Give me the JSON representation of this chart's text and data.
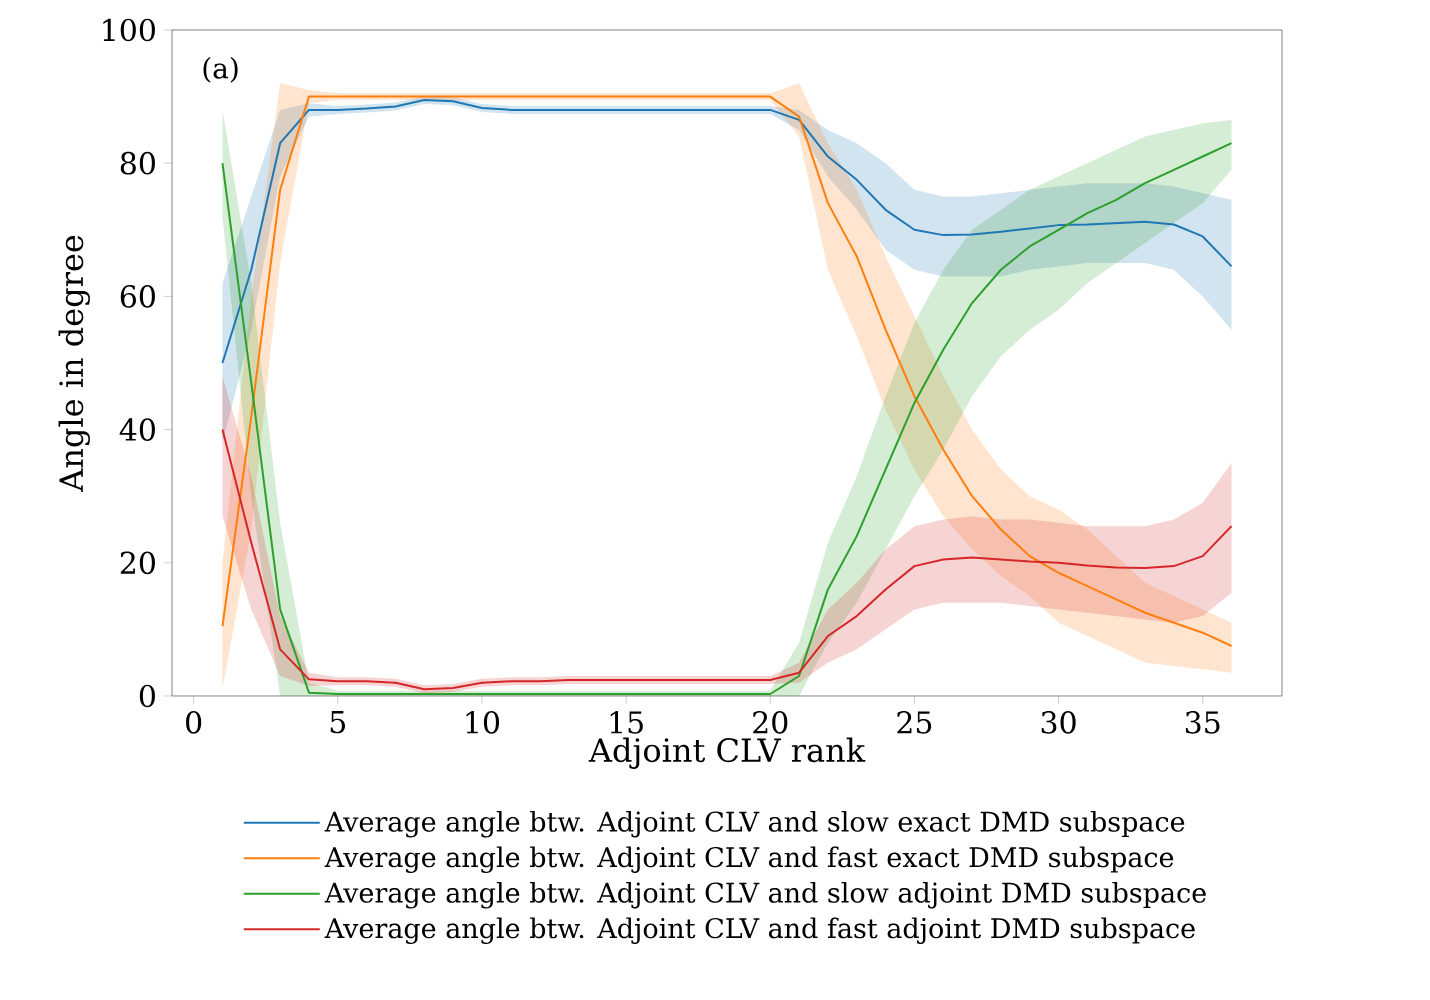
{
  "chart_data": {
    "type": "line",
    "xlabel": "Adjoint CLV rank",
    "ylabel": "Angle in degree",
    "annotations": [
      "(a)"
    ],
    "x": [
      1,
      2,
      3,
      4,
      5,
      6,
      7,
      8,
      9,
      10,
      11,
      12,
      13,
      14,
      15,
      16,
      17,
      18,
      19,
      20,
      21,
      22,
      23,
      24,
      25,
      26,
      27,
      28,
      29,
      30,
      31,
      32,
      33,
      34,
      35,
      36
    ],
    "series": [
      {
        "name": "Average angle btw. Adjoint CLV and slow exact DMD subspace",
        "color": "#1f77b4",
        "values": [
          50,
          64,
          83,
          88,
          88,
          88.2,
          88.5,
          89.5,
          89.3,
          88.3,
          88,
          88,
          88,
          88,
          88,
          88,
          88,
          88,
          88,
          88,
          86.5,
          81,
          77.5,
          73,
          70,
          69.2,
          69.3,
          69.7,
          70.2,
          70.7,
          70.8,
          71,
          71.2,
          70.8,
          69,
          64.5
        ],
        "lower": [
          38,
          55,
          78,
          87,
          87.4,
          87.6,
          87.9,
          88.9,
          88.7,
          87.7,
          87.4,
          87.4,
          87.4,
          87.4,
          87.4,
          87.4,
          87.4,
          87.4,
          87.4,
          87.4,
          85,
          78,
          73,
          67,
          64,
          63,
          63,
          63,
          64,
          64.5,
          65,
          65,
          65,
          64,
          60,
          55
        ],
        "upper": [
          62,
          75,
          88,
          89,
          88.6,
          88.8,
          89.1,
          90,
          89.9,
          88.9,
          88.6,
          88.6,
          88.6,
          88.6,
          88.6,
          88.6,
          88.6,
          88.6,
          88.6,
          88.6,
          88,
          85,
          83,
          80,
          76,
          75,
          75,
          75.5,
          76,
          76.5,
          77,
          77,
          77,
          76.5,
          75.5,
          74.5
        ]
      },
      {
        "name": "Average angle btw. Adjoint CLV and fast exact DMD subspace",
        "color": "#ff7f0e",
        "values": [
          10.5,
          42,
          76,
          90,
          90,
          90,
          90,
          90,
          90,
          90,
          90,
          90,
          90,
          90,
          90,
          90,
          90,
          90,
          90,
          90,
          87,
          74,
          66,
          55,
          45,
          37,
          30,
          25,
          21,
          18.5,
          16.5,
          14.5,
          12.5,
          11,
          9.5,
          7.5
        ],
        "lower": [
          1,
          25,
          65,
          89,
          89.5,
          89.5,
          89.5,
          89.5,
          89.5,
          89.5,
          89.5,
          89.5,
          89.5,
          89.5,
          89.5,
          89.5,
          89.5,
          89.5,
          89.5,
          89.5,
          84,
          64,
          54,
          43,
          34,
          27,
          22,
          18,
          15,
          11,
          9,
          7,
          5,
          4.5,
          4,
          3.5
        ],
        "upper": [
          20,
          60,
          92,
          91,
          90.5,
          90.5,
          90.5,
          90.5,
          90.5,
          90.5,
          90.5,
          90.5,
          90.5,
          90.5,
          90.5,
          90.5,
          90.5,
          90.5,
          90.5,
          90.5,
          92,
          83,
          76,
          66,
          57,
          48,
          40,
          34,
          30,
          28,
          25,
          21,
          17,
          15,
          13,
          11
        ]
      },
      {
        "name": "Average angle btw. Adjoint CLV and slow adjoint DMD subspace",
        "color": "#2ca02c",
        "values": [
          80,
          47,
          13,
          0.5,
          0.3,
          0.3,
          0.3,
          0.3,
          0.3,
          0.3,
          0.3,
          0.3,
          0.3,
          0.3,
          0.3,
          0.3,
          0.3,
          0.3,
          0.3,
          0.3,
          3,
          16,
          24,
          34,
          44,
          52,
          59,
          64,
          67.5,
          70,
          72.5,
          74.5,
          77,
          79,
          81,
          83
        ],
        "lower": [
          72,
          30,
          0,
          0,
          0,
          0,
          0,
          0,
          0,
          0,
          0,
          0,
          0,
          0,
          0,
          0,
          0,
          0,
          0,
          0,
          0,
          8,
          14,
          22,
          30,
          37,
          45,
          51,
          55,
          58,
          62,
          65,
          68,
          71,
          74,
          79
        ],
        "upper": [
          88,
          62,
          26,
          2,
          0.8,
          0.8,
          0.8,
          0.8,
          0.8,
          0.8,
          0.8,
          0.8,
          0.8,
          0.8,
          0.8,
          0.8,
          0.8,
          0.8,
          0.8,
          0.8,
          8,
          23,
          33,
          45,
          56,
          64,
          70,
          73,
          76,
          78,
          80,
          82,
          84,
          85,
          86,
          86.5
        ]
      },
      {
        "name": "Average angle btw. Adjoint CLV and fast adjoint DMD subspace",
        "color": "#d62728",
        "values": [
          40,
          23,
          7,
          2.5,
          2.2,
          2.2,
          2,
          1,
          1.2,
          2,
          2.2,
          2.2,
          2.4,
          2.4,
          2.4,
          2.4,
          2.4,
          2.4,
          2.4,
          2.4,
          3.5,
          9,
          12,
          16,
          19.5,
          20.5,
          20.8,
          20.5,
          20.2,
          20,
          19.6,
          19.3,
          19.2,
          19.5,
          21,
          25.5
        ],
        "lower": [
          27,
          13,
          3,
          1.5,
          1.6,
          1.6,
          1.4,
          0.4,
          0.6,
          1.4,
          1.6,
          1.6,
          1.8,
          1.8,
          1.8,
          1.8,
          1.8,
          1.8,
          1.8,
          1.8,
          2,
          5,
          7,
          10,
          13,
          14,
          14,
          14,
          13.5,
          13,
          12.5,
          12,
          11.5,
          11,
          12,
          15.5
        ],
        "upper": [
          48,
          33,
          12,
          3.5,
          2.8,
          2.8,
          2.6,
          1.6,
          1.8,
          2.6,
          2.8,
          2.8,
          3,
          3,
          3,
          3,
          3,
          3,
          3,
          3,
          5,
          13,
          17,
          22,
          25.5,
          26.5,
          27,
          26.5,
          26.5,
          26,
          25.5,
          25.5,
          25.5,
          26.5,
          29,
          35
        ]
      }
    ],
    "xlim": [
      -0.75,
      37.75
    ],
    "ylim": [
      0,
      100
    ],
    "xticks": [
      0,
      5,
      10,
      15,
      20,
      25,
      30,
      35
    ],
    "yticks": [
      0,
      20,
      40,
      60,
      80,
      100
    ],
    "grid": false,
    "legend": "bottom",
    "marker": "none",
    "line_style": "solid"
  }
}
